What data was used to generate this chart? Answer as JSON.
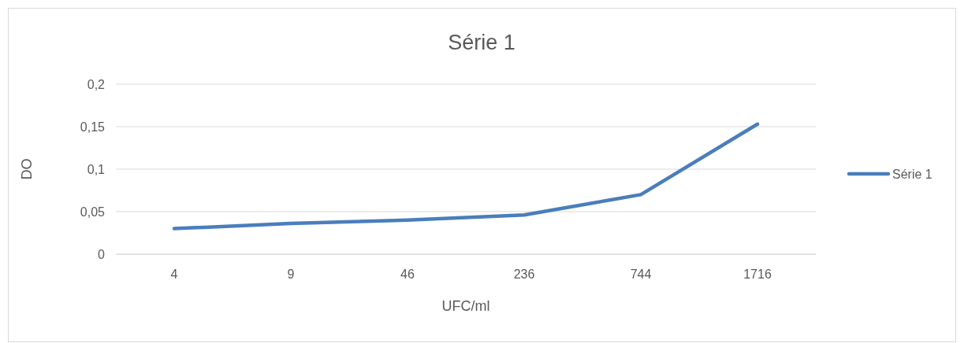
{
  "chart_data": {
    "type": "line",
    "title": "Série 1",
    "xlabel": "UFC/ml",
    "ylabel": "DO",
    "categories": [
      "4",
      "9",
      "46",
      "236",
      "744",
      "1716"
    ],
    "series": [
      {
        "name": "Série 1",
        "color": "#4a7ebb",
        "values": [
          0.03,
          0.036,
          0.04,
          0.046,
          0.07,
          0.153
        ]
      }
    ],
    "ylim": [
      0,
      0.2
    ],
    "yticks": [
      {
        "value": 0,
        "label": "0"
      },
      {
        "value": 0.05,
        "label": "0,05"
      },
      {
        "value": 0.1,
        "label": "0,1"
      },
      {
        "value": 0.15,
        "label": "0,15"
      },
      {
        "value": 0.2,
        "label": "0,2"
      }
    ],
    "grid": "y",
    "legend": "right",
    "marker": "none",
    "line_style": "solid"
  }
}
